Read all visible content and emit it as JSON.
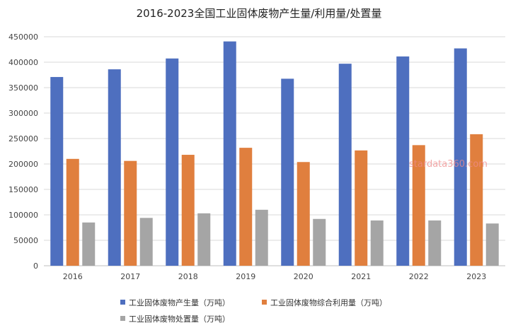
{
  "chart_data": {
    "type": "bar",
    "title": "2016-2023全国工业固体废物产生量/利用量/处置量",
    "categories": [
      "2016",
      "2017",
      "2018",
      "2019",
      "2020",
      "2021",
      "2022",
      "2023"
    ],
    "series": [
      {
        "name": "工业固体废物产生量（万吨）",
        "color": "#4e6fbf",
        "values": [
          370900,
          386000,
          407300,
          440800,
          367500,
          397000,
          411300,
          427100
        ]
      },
      {
        "name": "工业固体废物综合利用量（万吨）",
        "color": "#e07f3e",
        "values": [
          210000,
          206000,
          218000,
          231800,
          203800,
          226600,
          237000,
          258500
        ]
      },
      {
        "name": "工业固体废物处置量（万吨）",
        "color": "#a5a5a5",
        "values": [
          85000,
          94000,
          103000,
          110000,
          92000,
          89000,
          89000,
          83000
        ]
      }
    ],
    "ylim": [
      0,
      450000
    ],
    "yticks": [
      "0",
      "50000",
      "100000",
      "150000",
      "200000",
      "250000",
      "300000",
      "350000",
      "400000",
      "450000"
    ],
    "grid": true,
    "legend_position": "bottom"
  },
  "watermark": "stardata360.com"
}
